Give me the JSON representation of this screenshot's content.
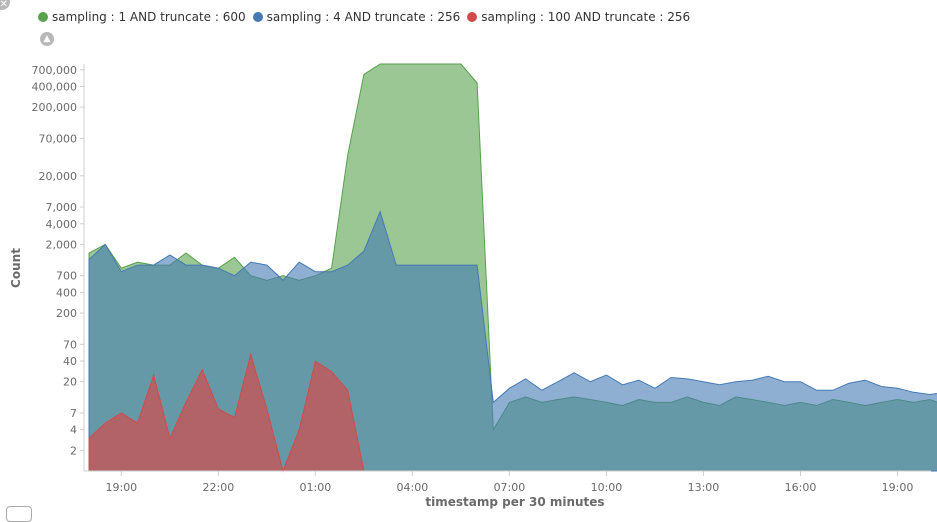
{
  "chart_data": {
    "type": "area",
    "xlabel": "timestamp per 30 minutes",
    "ylabel": "Count",
    "y_scale": "log",
    "x_tick_labels": [
      "19:00",
      "22:00",
      "01:00",
      "04:00",
      "07:00",
      "10:00",
      "13:00",
      "16:00",
      "19:00"
    ],
    "y_tick_labels": [
      "2",
      "4",
      "7",
      "20",
      "40",
      "70",
      "200",
      "400",
      "700",
      "2,000",
      "4,000",
      "7,000",
      "20,000",
      "70,000",
      "200,000",
      "400,000",
      "700,000"
    ],
    "y_tick_values": [
      2,
      4,
      7,
      20,
      40,
      70,
      200,
      400,
      700,
      2000,
      4000,
      7000,
      20000,
      70000,
      200000,
      400000,
      700000
    ],
    "legend_position": "top-left",
    "series": [
      {
        "name": "sampling : 1 AND truncate : 600",
        "color": "#57a14d",
        "values": [
          1500,
          2000,
          900,
          1100,
          1000,
          1000,
          1500,
          1000,
          900,
          1300,
          700,
          600,
          700,
          600,
          700,
          900,
          40000,
          600000,
          850000,
          850000,
          850000,
          850000,
          850000,
          850000,
          450000,
          4,
          10,
          12,
          10,
          11,
          12,
          11,
          10,
          9,
          11,
          10,
          10,
          12,
          10,
          9,
          12,
          11,
          10,
          9,
          10,
          9,
          11,
          10,
          9,
          10,
          11,
          10,
          11,
          9,
          9,
          9,
          4
        ]
      },
      {
        "name": "sampling : 4 AND truncate : 256",
        "color": "#4579b4",
        "values": [
          1200,
          2000,
          800,
          1000,
          1000,
          1400,
          1000,
          1000,
          900,
          700,
          1100,
          1000,
          600,
          1100,
          800,
          800,
          1000,
          1600,
          6000,
          1000,
          1000,
          1000,
          1000,
          1000,
          1000,
          10,
          16,
          22,
          15,
          20,
          27,
          20,
          25,
          18,
          21,
          16,
          23,
          22,
          20,
          18,
          20,
          21,
          24,
          20,
          20,
          15,
          15,
          19,
          21,
          17,
          16,
          14,
          13,
          14,
          14,
          13,
          6
        ]
      },
      {
        "name": "sampling : 100 AND truncate : 256",
        "color": "#d24b4b",
        "values": [
          3,
          5,
          7,
          5,
          25,
          3,
          10,
          30,
          8,
          6,
          50,
          8,
          1,
          4,
          40,
          28,
          15,
          1
        ]
      }
    ]
  },
  "legend": {
    "items": [
      {
        "label": "sampling : 1 AND truncate : 600",
        "color": "#57a14d"
      },
      {
        "label": "sampling : 4 AND truncate : 256",
        "color": "#4579b4"
      },
      {
        "label": "sampling : 100 AND truncate : 256",
        "color": "#d24b4b"
      }
    ]
  },
  "controls": {
    "toggle_icon": "chevron-up-icon",
    "corner_icon": "close-icon"
  }
}
